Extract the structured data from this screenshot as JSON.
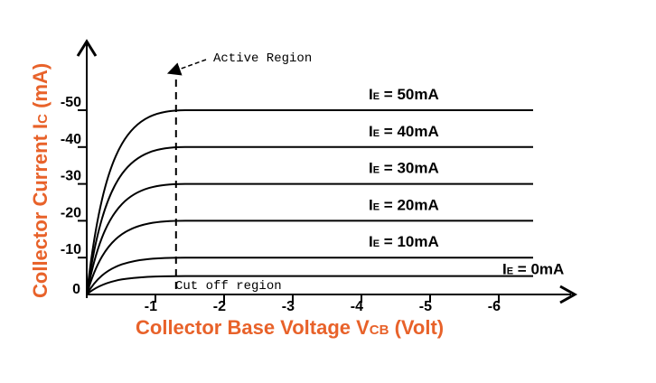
{
  "chart_data": {
    "type": "line",
    "title": "",
    "xlabel": "Collector Base Voltage V",
    "xlabel_sub": "CB",
    "xlabel_suffix": " (Volt)",
    "ylabel": "Collector Current I",
    "ylabel_sub": "C",
    "ylabel_suffix": " (mA)",
    "label_color": "#e8622a",
    "x_ticks": [
      "-1",
      "-2",
      "-3",
      "-4",
      "-5",
      "-6"
    ],
    "x_tick_values": [
      1,
      2,
      3,
      4,
      5,
      6
    ],
    "y_ticks": [
      "0",
      "-10",
      "-20",
      "-30",
      "-40",
      "-50"
    ],
    "y_tick_values": [
      0,
      10,
      20,
      30,
      40,
      50
    ],
    "xlim": [
      0,
      7.2
    ],
    "ylim": [
      0,
      60
    ],
    "knee_x": 1.3,
    "x_end": 6.5,
    "series": [
      {
        "name_main": "I",
        "name_sub": "E",
        "name_rest": " = 50mA",
        "value": 50
      },
      {
        "name_main": "I",
        "name_sub": "E",
        "name_rest": " = 40mA",
        "value": 40
      },
      {
        "name_main": "I",
        "name_sub": "E",
        "name_rest": " = 30mA",
        "value": 30
      },
      {
        "name_main": "I",
        "name_sub": "E",
        "name_rest": " = 20mA",
        "value": 20
      },
      {
        "name_main": "I",
        "name_sub": "E",
        "name_rest": " = 10mA",
        "value": 10
      },
      {
        "name_main": "I",
        "name_sub": "E",
        "name_rest": " = 0mA",
        "value": 5
      }
    ],
    "annotations": {
      "active_region": "Active Region",
      "cutoff_region": "Cut off region"
    },
    "grid": false,
    "legend": "inline-right"
  }
}
